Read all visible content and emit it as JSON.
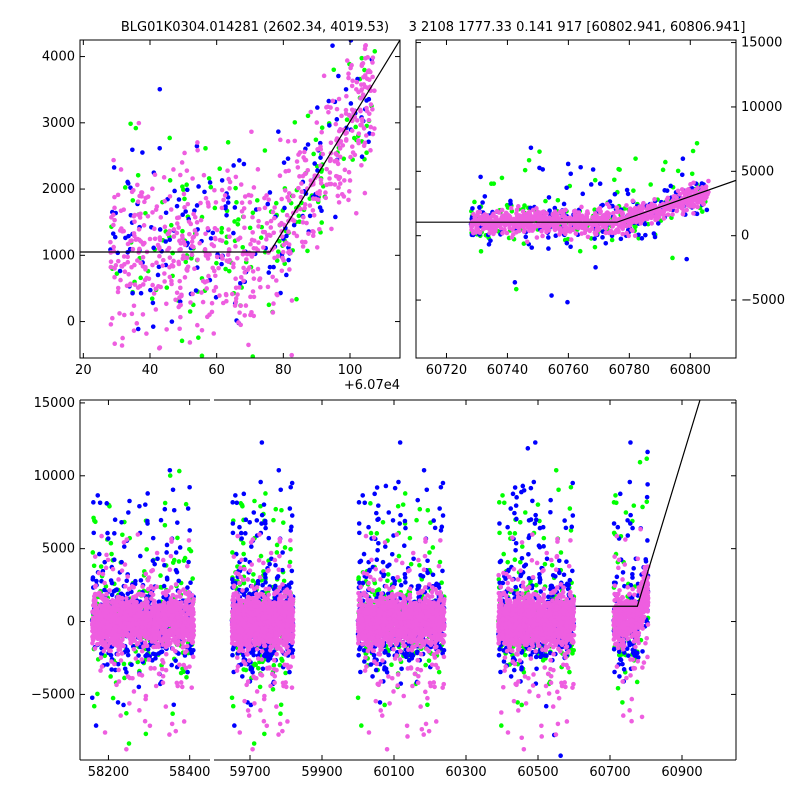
{
  "title_left": "BLG01K0304.014281 (2602.34, 4019.53)",
  "title_right": "3 2108 1777.33 0.141 917 [60802.941, 60806.941]",
  "colors": {
    "green": "#00ff00",
    "blue": "#0000ff",
    "magenta": "#ee5ee0",
    "model": "#000000"
  },
  "chart_data": [
    {
      "type": "scatter",
      "panel": "zoom-offset",
      "xlabel": "",
      "ylabel": "",
      "x_offset_label": "+6.07e4",
      "xlim": [
        19,
        115
      ],
      "ylim": [
        -550,
        4250
      ],
      "x_ticks": [
        20,
        40,
        60,
        80,
        100
      ],
      "y_ticks": [
        0,
        1000,
        2000,
        3000,
        4000
      ],
      "series": [
        {
          "color_key": "green",
          "center_x": 82,
          "spread": 28
        },
        {
          "color_key": "blue",
          "center_x": 82,
          "spread": 28
        },
        {
          "color_key": "magenta",
          "center_x": 82,
          "spread": 28
        }
      ],
      "model_line": {
        "x": [
          19,
          76,
          115
        ],
        "y": [
          1050,
          1050,
          4250
        ]
      }
    },
    {
      "type": "scatter",
      "panel": "recent",
      "xlabel": "",
      "ylabel": "",
      "xlim": [
        60710,
        60815
      ],
      "ylim": [
        -9500,
        15200
      ],
      "x_ticks": [
        60720,
        60740,
        60760,
        60780,
        60800
      ],
      "y_ticks": [
        -5000,
        0,
        5000,
        10000,
        15000
      ],
      "series": [
        {
          "color_key": "green"
        },
        {
          "color_key": "blue"
        },
        {
          "color_key": "magenta"
        }
      ],
      "model_line": {
        "x": [
          60710,
          60776,
          60815
        ],
        "y": [
          1050,
          1050,
          4300
        ]
      }
    },
    {
      "type": "scatter",
      "panel": "full",
      "xlabel": "",
      "ylabel": "",
      "segments": [
        {
          "xlim": [
            58130,
            58450
          ],
          "x_ticks": [
            58200,
            58400
          ]
        },
        {
          "xlim": [
            59600,
            61050
          ],
          "x_ticks": [
            59700,
            59900,
            60100,
            60300,
            60500,
            60700,
            60900
          ]
        }
      ],
      "ylim": [
        -9500,
        15200
      ],
      "y_ticks": [
        -5000,
        0,
        5000,
        10000,
        15000
      ],
      "seasons": [
        {
          "x": [
            58160,
            58410
          ]
        },
        {
          "x": [
            59650,
            59820
          ]
        },
        {
          "x": [
            60000,
            60240
          ]
        },
        {
          "x": [
            60390,
            60600
          ]
        },
        {
          "x": [
            60710,
            60806
          ]
        }
      ],
      "series": [
        {
          "color_key": "green"
        },
        {
          "color_key": "blue"
        },
        {
          "color_key": "magenta"
        }
      ],
      "model_line": {
        "x": [
          60605,
          60776,
          60950
        ],
        "y": [
          1050,
          1050,
          15200
        ]
      }
    }
  ]
}
